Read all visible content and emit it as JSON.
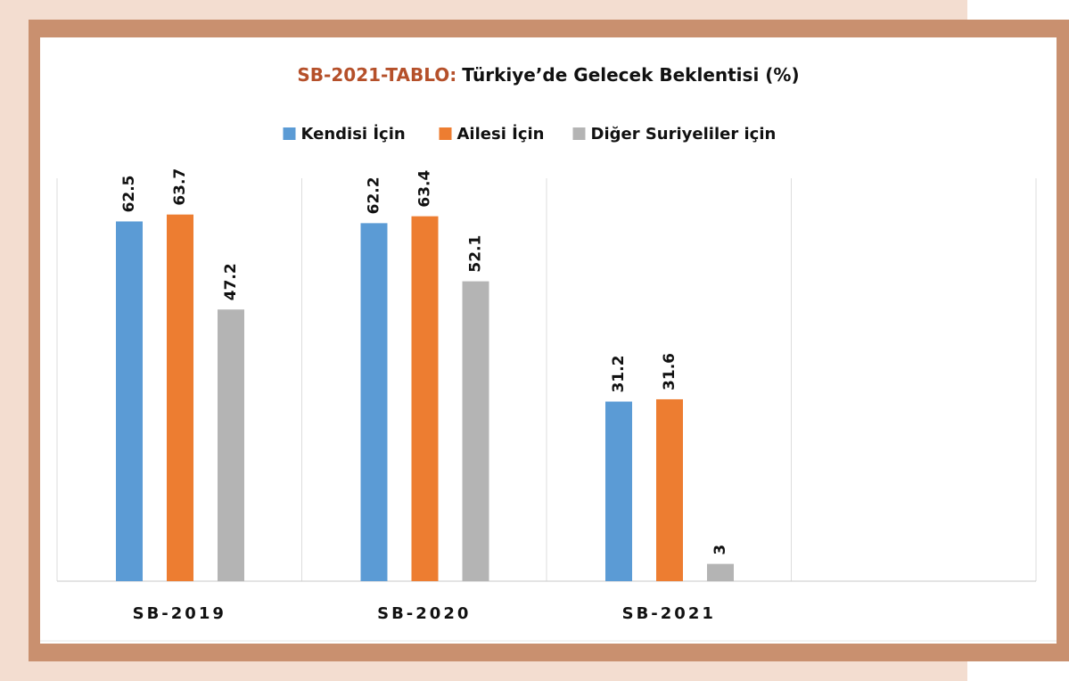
{
  "chart_data": {
    "type": "bar",
    "title_prefix": "SB-2021-TABLO:",
    "title": "Türkiye’de Gelecek Beklentisi (%)",
    "categories": [
      "SB-2019",
      "SB-2020",
      "SB-2021",
      null
    ],
    "series": [
      {
        "name": "Kendisi İçin",
        "color": "#5b9bd5",
        "values": [
          62.5,
          62.2,
          31.2,
          null
        ]
      },
      {
        "name": "Ailesi İçin",
        "color": "#ed7d31",
        "values": [
          63.7,
          63.4,
          31.6,
          null
        ]
      },
      {
        "name": "Diğer Suriyeliler için",
        "color": "#b4b4b4",
        "values": [
          47.2,
          52.1,
          3,
          null
        ]
      }
    ],
    "ylim": [
      0,
      70
    ],
    "legend": "top"
  }
}
